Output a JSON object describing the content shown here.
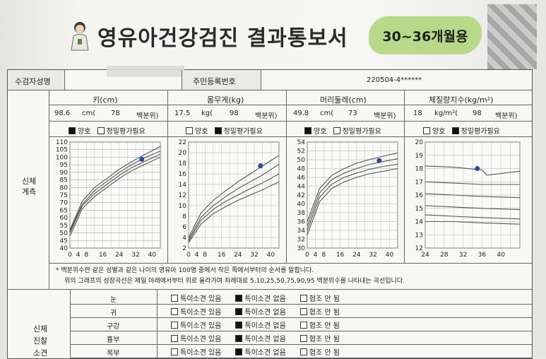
{
  "header": {
    "title": "영유아건강검진 결과통보서",
    "age_range": "30~36개월용"
  },
  "form": {
    "name_label": "수검자성명",
    "id_label": "주민등록번호",
    "id_value": "220504-4******"
  },
  "measures": [
    {
      "title": "키(cm)",
      "value": "98.6",
      "unit": "cm(",
      "pct": "78",
      "pct_label": "백분위)",
      "normal": "양호",
      "review": "정밀평가필요",
      "status": "normal"
    },
    {
      "title": "몸무게(kg)",
      "value": "17.5",
      "unit": "kg(",
      "pct": "98",
      "pct_label": "백분위)",
      "normal": "양호",
      "review": "정밀평가필요",
      "status": "review"
    },
    {
      "title": "머리둘레(cm)",
      "value": "49.8",
      "unit": "cm(",
      "pct": "73",
      "pct_label": "백분위)",
      "normal": "양호",
      "review": "정밀평가필요",
      "status": "normal"
    },
    {
      "title": "체질량지수(kg/m²)",
      "value": "18",
      "unit": "kg/m²(",
      "pct": "98",
      "pct_label": "백분위)",
      "normal": "양호",
      "review": "정밀평가필요",
      "status": "review"
    }
  ],
  "section_body": "신체\n계측",
  "section_exam": "신체\n진찰\n소견",
  "notes": [
    "* 백분위수란 같은 성별과 같은 나이의 영유아 100명 중에서 작은 쪽에서부터의 순서를 말합니다.",
    "위의 그래프의 성장곡선은 제일 아래에서부터 위로 올라가며 차례대로 5,10,25,50,75,90,95 백분위수를 나타내는 곡선입니다."
  ],
  "exam_options": [
    "특이소견 있음",
    "특이소견 없음",
    "협조 안 됨"
  ],
  "exam_rows": [
    {
      "label": "눈",
      "selected": 1
    },
    {
      "label": "귀",
      "selected": 1
    },
    {
      "label": "구강",
      "selected": 1
    },
    {
      "label": "흉부",
      "selected": 1
    },
    {
      "label": "복부",
      "selected": 1
    }
  ],
  "chart_data": [
    {
      "type": "line",
      "x_ticks": [
        "0",
        "4",
        "8",
        "16",
        "24",
        "32",
        "40"
      ],
      "y_ticks": [
        "40",
        "45",
        "50",
        "55",
        "60",
        "65",
        "70",
        "75",
        "80",
        "85",
        "90",
        "95",
        "100",
        "105",
        "110"
      ],
      "ylim": [
        40,
        110
      ],
      "xlim": [
        0,
        44
      ],
      "series": [
        {
          "values": [
            [
              0,
              48
            ],
            [
              6,
              66
            ],
            [
              12,
              74
            ],
            [
              18,
              80
            ],
            [
              24,
              86
            ],
            [
              30,
              91
            ],
            [
              36,
              95
            ],
            [
              44,
              100
            ]
          ]
        },
        {
          "values": [
            [
              0,
              50
            ],
            [
              6,
              68
            ],
            [
              12,
              76
            ],
            [
              18,
              82
            ],
            [
              24,
              88
            ],
            [
              30,
              93
            ],
            [
              36,
              97
            ],
            [
              44,
              102
            ]
          ]
        },
        {
          "values": [
            [
              0,
              51
            ],
            [
              6,
              69
            ],
            [
              12,
              78
            ],
            [
              18,
              84
            ],
            [
              24,
              90
            ],
            [
              30,
              95
            ],
            [
              36,
              99.5
            ],
            [
              44,
              104
            ]
          ]
        },
        {
          "values": [
            [
              0,
              52
            ],
            [
              6,
              71
            ],
            [
              12,
              80
            ],
            [
              18,
              86
            ],
            [
              24,
              92
            ],
            [
              30,
              97
            ],
            [
              36,
              101.5
            ],
            [
              44,
              107
            ]
          ]
        }
      ],
      "points": [
        [
          35,
          98.6
        ]
      ]
    },
    {
      "type": "line",
      "x_ticks": [
        "0",
        "4",
        "8",
        "16",
        "24",
        "32",
        "40"
      ],
      "y_ticks": [
        "2",
        "4",
        "6",
        "8",
        "10",
        "12",
        "14",
        "16",
        "18",
        "20",
        "22"
      ],
      "ylim": [
        2,
        22
      ],
      "xlim": [
        0,
        44
      ],
      "series": [
        {
          "values": [
            [
              0,
              3
            ],
            [
              6,
              6.5
            ],
            [
              12,
              8.5
            ],
            [
              18,
              9.8
            ],
            [
              24,
              11
            ],
            [
              30,
              12
            ],
            [
              36,
              13
            ],
            [
              44,
              14.5
            ]
          ]
        },
        {
          "values": [
            [
              0,
              3.3
            ],
            [
              6,
              7.2
            ],
            [
              12,
              9.3
            ],
            [
              18,
              10.8
            ],
            [
              24,
              12
            ],
            [
              30,
              13.2
            ],
            [
              36,
              14.3
            ],
            [
              44,
              16
            ]
          ]
        },
        {
          "values": [
            [
              0,
              3.6
            ],
            [
              6,
              7.8
            ],
            [
              12,
              10
            ],
            [
              18,
              11.7
            ],
            [
              24,
              13.2
            ],
            [
              30,
              14.5
            ],
            [
              36,
              15.8
            ],
            [
              44,
              17.8
            ]
          ]
        },
        {
          "values": [
            [
              0,
              4
            ],
            [
              6,
              8.6
            ],
            [
              12,
              11
            ],
            [
              18,
              12.8
            ],
            [
              24,
              14.5
            ],
            [
              30,
              16
            ],
            [
              36,
              17.5
            ],
            [
              44,
              19.5
            ]
          ]
        }
      ],
      "points": [
        [
          35,
          17.5
        ]
      ]
    },
    {
      "type": "line",
      "x_ticks": [
        "0",
        "4",
        "8",
        "16",
        "24",
        "32",
        "40"
      ],
      "y_ticks": [
        "30",
        "32",
        "34",
        "36",
        "38",
        "40",
        "42",
        "44",
        "46",
        "48",
        "50",
        "52",
        "54"
      ],
      "ylim": [
        30,
        54
      ],
      "xlim": [
        0,
        44
      ],
      "series": [
        {
          "values": [
            [
              0,
              33
            ],
            [
              6,
              40.5
            ],
            [
              12,
              43.5
            ],
            [
              18,
              45
            ],
            [
              24,
              46
            ],
            [
              30,
              46.8
            ],
            [
              36,
              47.3
            ],
            [
              44,
              48
            ]
          ]
        },
        {
          "values": [
            [
              0,
              34
            ],
            [
              6,
              41.5
            ],
            [
              12,
              44.5
            ],
            [
              18,
              46
            ],
            [
              24,
              47
            ],
            [
              30,
              47.8
            ],
            [
              36,
              48.4
            ],
            [
              44,
              49
            ]
          ]
        },
        {
          "values": [
            [
              0,
              35
            ],
            [
              6,
              42.5
            ],
            [
              12,
              45.5
            ],
            [
              18,
              47
            ],
            [
              24,
              48
            ],
            [
              30,
              48.9
            ],
            [
              36,
              49.5
            ],
            [
              44,
              50.2
            ]
          ]
        },
        {
          "values": [
            [
              0,
              36
            ],
            [
              6,
              43.5
            ],
            [
              12,
              46.5
            ],
            [
              18,
              48
            ],
            [
              24,
              49.2
            ],
            [
              30,
              50
            ],
            [
              36,
              50.7
            ],
            [
              44,
              51.5
            ]
          ]
        }
      ],
      "points": [
        [
          35,
          49.8
        ]
      ]
    },
    {
      "type": "line",
      "x_ticks": [
        "24",
        "28",
        "32",
        "36",
        "40"
      ],
      "y_ticks": [
        "12",
        "13",
        "14",
        "15",
        "16",
        "17",
        "18",
        "19",
        "20"
      ],
      "ylim": [
        12,
        20
      ],
      "xlim": [
        24,
        44
      ],
      "series": [
        {
          "values": [
            [
              24,
              14
            ],
            [
              30,
              14
            ],
            [
              36,
              13.9
            ],
            [
              44,
              13.8
            ]
          ]
        },
        {
          "values": [
            [
              24,
              14.5
            ],
            [
              30,
              14.4
            ],
            [
              36,
              14.3
            ],
            [
              44,
              14.2
            ]
          ]
        },
        {
          "values": [
            [
              24,
              15.2
            ],
            [
              30,
              15.1
            ],
            [
              36,
              15
            ],
            [
              44,
              14.9
            ]
          ]
        },
        {
          "values": [
            [
              24,
              16.1
            ],
            [
              30,
              16
            ],
            [
              36,
              15.9
            ],
            [
              44,
              15.8
            ]
          ]
        },
        {
          "values": [
            [
              24,
              17
            ],
            [
              30,
              16.9
            ],
            [
              36,
              16.8
            ],
            [
              44,
              16.8
            ]
          ]
        },
        {
          "values": [
            [
              24,
              18.2
            ],
            [
              30,
              18.1
            ],
            [
              36,
              17.9
            ],
            [
              37,
              17.5
            ],
            [
              44,
              17.8
            ]
          ]
        }
      ],
      "points": [
        [
          35,
          18
        ]
      ]
    }
  ]
}
